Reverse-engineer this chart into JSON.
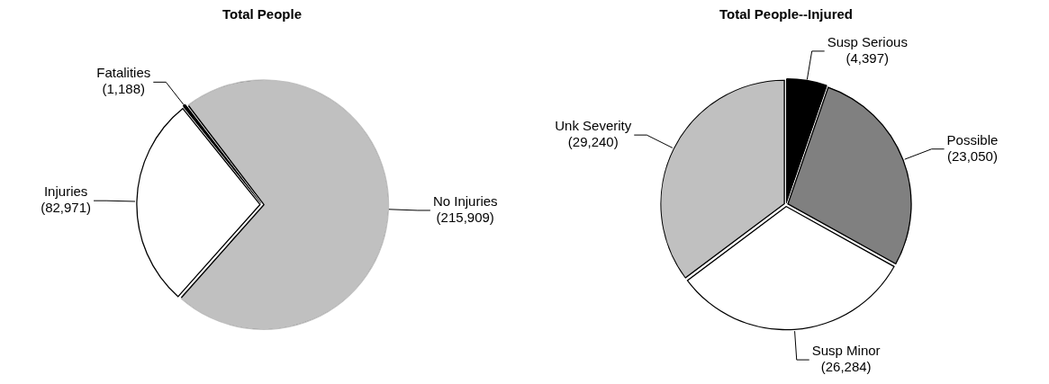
{
  "chart_data": [
    {
      "type": "pie",
      "title": "Total People",
      "categories": [
        "Fatalities",
        "No Injuries",
        "Injuries"
      ],
      "values": [
        1188,
        215909,
        82971
      ],
      "value_labels": [
        "(1,188)",
        "(215,909)",
        "(82,971)"
      ],
      "colors": [
        "#000000",
        "#c0c0c0",
        "#ffffff"
      ],
      "legend": false
    },
    {
      "type": "pie",
      "title": "Total People--Injured",
      "categories": [
        "Susp Serious",
        "Possible",
        "Susp Minor",
        "Unk Severity"
      ],
      "values": [
        4397,
        23050,
        26284,
        29240
      ],
      "value_labels": [
        "(4,397)",
        "(23,050)",
        "(26,284)",
        "(29,240)"
      ],
      "colors": [
        "#000000",
        "#808080",
        "#ffffff",
        "#c0c0c0"
      ],
      "legend": false
    }
  ]
}
